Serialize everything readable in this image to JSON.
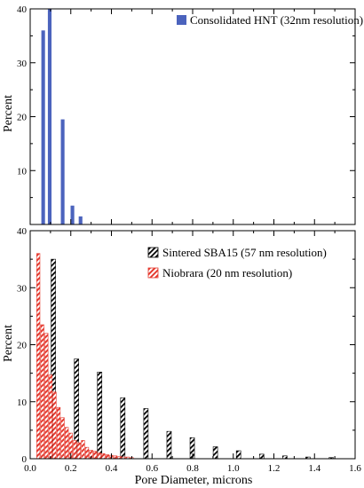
{
  "chart_data": [
    {
      "type": "bar",
      "ylabel": "Percent",
      "xlim": [
        0,
        1.6
      ],
      "ylim": [
        0,
        40
      ],
      "yticks": [
        10,
        20,
        30,
        40
      ],
      "legend_position": "top-right",
      "series": [
        {
          "name": "Consolidated HNT (32nm resolution)",
          "color": "#4b63bd",
          "pattern": "solid",
          "points": [
            {
              "x": 0.064,
              "y": 36.0
            },
            {
              "x": 0.096,
              "y": 40.0
            },
            {
              "x": 0.16,
              "y": 19.5
            },
            {
              "x": 0.208,
              "y": 3.5
            },
            {
              "x": 0.248,
              "y": 1.5
            }
          ]
        }
      ]
    },
    {
      "type": "bar",
      "ylabel": "Percent",
      "xlabel": "Pore Diameter, microns",
      "xlim": [
        0,
        1.6
      ],
      "ylim": [
        0,
        40
      ],
      "xticks": [
        "0.0",
        "0.2",
        "0.4",
        "0.6",
        "0.8",
        "1.0",
        "1.2",
        "1.4",
        "1.6"
      ],
      "yticks": [
        0,
        10,
        20,
        30,
        40
      ],
      "legend_position": "top-right",
      "series": [
        {
          "name": "Sintered SBA15 (57 nm resolution)",
          "color": "#000000",
          "pattern": "hatch",
          "points": [
            {
              "x": 0.114,
              "y": 35.0
            },
            {
              "x": 0.228,
              "y": 17.5
            },
            {
              "x": 0.342,
              "y": 15.2
            },
            {
              "x": 0.456,
              "y": 10.7
            },
            {
              "x": 0.57,
              "y": 8.8
            },
            {
              "x": 0.684,
              "y": 4.8
            },
            {
              "x": 0.798,
              "y": 3.7
            },
            {
              "x": 0.912,
              "y": 2.1
            },
            {
              "x": 1.026,
              "y": 1.4
            },
            {
              "x": 1.14,
              "y": 0.8
            },
            {
              "x": 1.254,
              "y": 0.5
            },
            {
              "x": 1.368,
              "y": 0.3
            },
            {
              "x": 1.482,
              "y": 0.2
            }
          ]
        },
        {
          "name": "Niobrara (20 nm resolution)",
          "color": "#e53a2f",
          "pattern": "hatch",
          "points": [
            {
              "x": 0.04,
              "y": 36.0
            },
            {
              "x": 0.06,
              "y": 23.5
            },
            {
              "x": 0.08,
              "y": 22.0
            },
            {
              "x": 0.1,
              "y": 14.7
            },
            {
              "x": 0.12,
              "y": 11.7
            },
            {
              "x": 0.14,
              "y": 9.0
            },
            {
              "x": 0.16,
              "y": 7.2
            },
            {
              "x": 0.18,
              "y": 5.5
            },
            {
              "x": 0.2,
              "y": 4.5
            },
            {
              "x": 0.22,
              "y": 3.2
            },
            {
              "x": 0.24,
              "y": 2.8
            },
            {
              "x": 0.26,
              "y": 3.2
            },
            {
              "x": 0.28,
              "y": 2.0
            },
            {
              "x": 0.3,
              "y": 1.5
            },
            {
              "x": 0.32,
              "y": 1.3
            },
            {
              "x": 0.34,
              "y": 1.0
            },
            {
              "x": 0.36,
              "y": 0.9
            },
            {
              "x": 0.38,
              "y": 0.7
            },
            {
              "x": 0.4,
              "y": 0.6
            },
            {
              "x": 0.42,
              "y": 0.5
            },
            {
              "x": 0.44,
              "y": 0.4
            },
            {
              "x": 0.46,
              "y": 0.3
            },
            {
              "x": 0.48,
              "y": 0.3
            },
            {
              "x": 0.5,
              "y": 0.2
            }
          ]
        }
      ]
    }
  ]
}
